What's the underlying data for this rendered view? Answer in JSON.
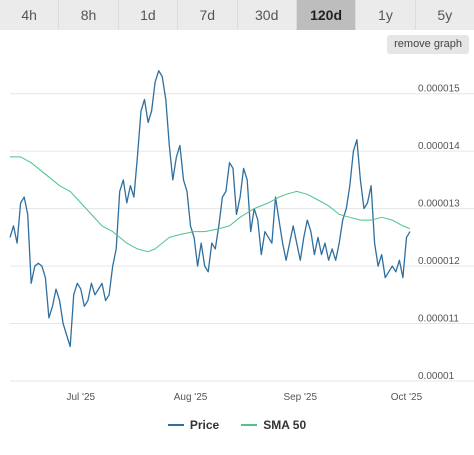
{
  "tabs": [
    {
      "label": "4h"
    },
    {
      "label": "8h"
    },
    {
      "label": "1d"
    },
    {
      "label": "7d"
    },
    {
      "label": "30d"
    },
    {
      "label": "120d",
      "active": true
    },
    {
      "label": "1y"
    },
    {
      "label": "5y"
    }
  ],
  "remove_graph_label": "remove graph",
  "colors": {
    "price": "#2f6f9f",
    "sma": "#4cc48a",
    "grid": "#e6e6e6"
  },
  "chart_data": {
    "type": "line",
    "xlabel": "",
    "ylabel": "",
    "x_ticks": [
      {
        "label": "Jul '25",
        "t": 17
      },
      {
        "label": "Aug '25",
        "t": 48
      },
      {
        "label": "Sep '25",
        "t": 79
      },
      {
        "label": "Oct '25",
        "t": 109
      }
    ],
    "y_ticks": [
      "0.000015",
      "0.000014",
      "0.000013",
      "0.000012",
      "0.000011",
      "0.00001"
    ],
    "ylim": [
      1e-05,
      1.55e-05
    ],
    "x_range": [
      -3,
      110
    ],
    "grid": true,
    "legend_position": "bottom-center",
    "series": [
      {
        "name": "Price",
        "points": [
          [
            -3,
            1.25
          ],
          [
            -2,
            1.27
          ],
          [
            -1,
            1.24
          ],
          [
            0,
            1.31
          ],
          [
            1,
            1.32
          ],
          [
            2,
            1.29
          ],
          [
            3,
            1.17
          ],
          [
            4,
            1.2
          ],
          [
            5,
            1.205
          ],
          [
            6,
            1.2
          ],
          [
            7,
            1.18
          ],
          [
            8,
            1.11
          ],
          [
            9,
            1.13
          ],
          [
            10,
            1.16
          ],
          [
            11,
            1.14
          ],
          [
            12,
            1.1
          ],
          [
            13,
            1.08
          ],
          [
            14,
            1.06
          ],
          [
            15,
            1.15
          ],
          [
            16,
            1.17
          ],
          [
            17,
            1.16
          ],
          [
            18,
            1.13
          ],
          [
            19,
            1.14
          ],
          [
            20,
            1.17
          ],
          [
            21,
            1.15
          ],
          [
            22,
            1.16
          ],
          [
            23,
            1.17
          ],
          [
            24,
            1.14
          ],
          [
            25,
            1.15
          ],
          [
            26,
            1.2
          ],
          [
            27,
            1.23
          ],
          [
            28,
            1.33
          ],
          [
            29,
            1.35
          ],
          [
            30,
            1.31
          ],
          [
            31,
            1.34
          ],
          [
            32,
            1.32
          ],
          [
            33,
            1.39
          ],
          [
            34,
            1.47
          ],
          [
            35,
            1.49
          ],
          [
            36,
            1.45
          ],
          [
            37,
            1.47
          ],
          [
            38,
            1.52
          ],
          [
            39,
            1.54
          ],
          [
            40,
            1.53
          ],
          [
            41,
            1.49
          ],
          [
            42,
            1.41
          ],
          [
            43,
            1.35
          ],
          [
            44,
            1.39
          ],
          [
            45,
            1.41
          ],
          [
            46,
            1.35
          ],
          [
            47,
            1.33
          ],
          [
            48,
            1.27
          ],
          [
            49,
            1.25
          ],
          [
            50,
            1.2
          ],
          [
            51,
            1.24
          ],
          [
            52,
            1.2
          ],
          [
            53,
            1.19
          ],
          [
            54,
            1.24
          ],
          [
            55,
            1.23
          ],
          [
            56,
            1.27
          ],
          [
            57,
            1.32
          ],
          [
            58,
            1.33
          ],
          [
            59,
            1.38
          ],
          [
            60,
            1.37
          ],
          [
            61,
            1.29
          ],
          [
            62,
            1.32
          ],
          [
            63,
            1.37
          ],
          [
            64,
            1.35
          ],
          [
            65,
            1.26
          ],
          [
            66,
            1.3
          ],
          [
            67,
            1.28
          ],
          [
            68,
            1.22
          ],
          [
            69,
            1.26
          ],
          [
            70,
            1.25
          ],
          [
            71,
            1.24
          ],
          [
            72,
            1.32
          ],
          [
            73,
            1.28
          ],
          [
            74,
            1.24
          ],
          [
            75,
            1.21
          ],
          [
            76,
            1.24
          ],
          [
            77,
            1.27
          ],
          [
            78,
            1.24
          ],
          [
            79,
            1.21
          ],
          [
            80,
            1.25
          ],
          [
            81,
            1.28
          ],
          [
            82,
            1.26
          ],
          [
            83,
            1.22
          ],
          [
            84,
            1.25
          ],
          [
            85,
            1.22
          ],
          [
            86,
            1.24
          ],
          [
            87,
            1.21
          ],
          [
            88,
            1.23
          ],
          [
            89,
            1.21
          ],
          [
            90,
            1.24
          ],
          [
            91,
            1.28
          ],
          [
            92,
            1.3
          ],
          [
            93,
            1.34
          ],
          [
            94,
            1.4
          ],
          [
            95,
            1.42
          ],
          [
            96,
            1.35
          ],
          [
            97,
            1.3
          ],
          [
            98,
            1.31
          ],
          [
            99,
            1.34
          ],
          [
            100,
            1.24
          ],
          [
            101,
            1.2
          ],
          [
            102,
            1.22
          ],
          [
            103,
            1.18
          ],
          [
            104,
            1.19
          ],
          [
            105,
            1.2
          ],
          [
            106,
            1.19
          ],
          [
            107,
            1.21
          ],
          [
            108,
            1.18
          ],
          [
            109,
            1.25
          ],
          [
            110,
            1.26
          ]
        ]
      },
      {
        "name": "SMA 50",
        "points": [
          [
            -3,
            1.39
          ],
          [
            0,
            1.39
          ],
          [
            3,
            1.38
          ],
          [
            7,
            1.36
          ],
          [
            11,
            1.34
          ],
          [
            14,
            1.33
          ],
          [
            17,
            1.31
          ],
          [
            20,
            1.29
          ],
          [
            23,
            1.27
          ],
          [
            26,
            1.26
          ],
          [
            30,
            1.24
          ],
          [
            33,
            1.23
          ],
          [
            36,
            1.225
          ],
          [
            38,
            1.23
          ],
          [
            40,
            1.24
          ],
          [
            42,
            1.25
          ],
          [
            45,
            1.255
          ],
          [
            49,
            1.26
          ],
          [
            52,
            1.26
          ],
          [
            56,
            1.265
          ],
          [
            59,
            1.27
          ],
          [
            62,
            1.285
          ],
          [
            66,
            1.3
          ],
          [
            70,
            1.31
          ],
          [
            73,
            1.32
          ],
          [
            75,
            1.325
          ],
          [
            78,
            1.33
          ],
          [
            81,
            1.325
          ],
          [
            84,
            1.315
          ],
          [
            87,
            1.305
          ],
          [
            90,
            1.29
          ],
          [
            93,
            1.285
          ],
          [
            96,
            1.28
          ],
          [
            99,
            1.28
          ],
          [
            102,
            1.285
          ],
          [
            105,
            1.28
          ],
          [
            108,
            1.27
          ],
          [
            110,
            1.265
          ]
        ]
      }
    ]
  },
  "legend": [
    {
      "label": "Price"
    },
    {
      "label": "SMA 50"
    }
  ]
}
